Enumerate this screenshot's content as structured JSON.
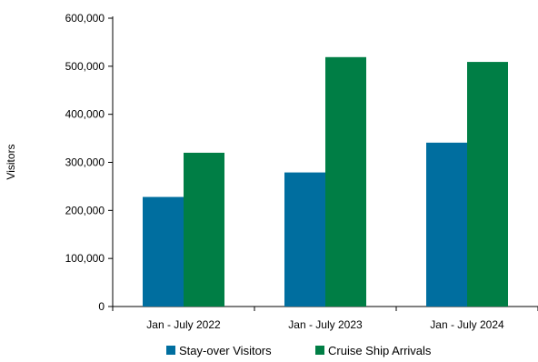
{
  "chart_data": {
    "type": "bar",
    "title": "",
    "xlabel": "",
    "ylabel": "Visitors",
    "categories": [
      "Jan - July 2022",
      "Jan - July 2023",
      "Jan - July 2024"
    ],
    "series": [
      {
        "name": "Stay-over Visitors",
        "color": "#006E9F",
        "values": [
          228000,
          279000,
          341000
        ]
      },
      {
        "name": "Cruise Ship Arrivals",
        "color": "#007E45",
        "values": [
          320000,
          519000,
          509000
        ]
      }
    ],
    "ylim": [
      0,
      600000
    ],
    "yticks": [
      0,
      100000,
      200000,
      300000,
      400000,
      500000,
      600000
    ],
    "ytick_labels": [
      "0",
      "100,000",
      "200,000",
      "300,000",
      "400,000",
      "500,000",
      "600,000"
    ],
    "grid": false,
    "legend_position": "bottom"
  }
}
